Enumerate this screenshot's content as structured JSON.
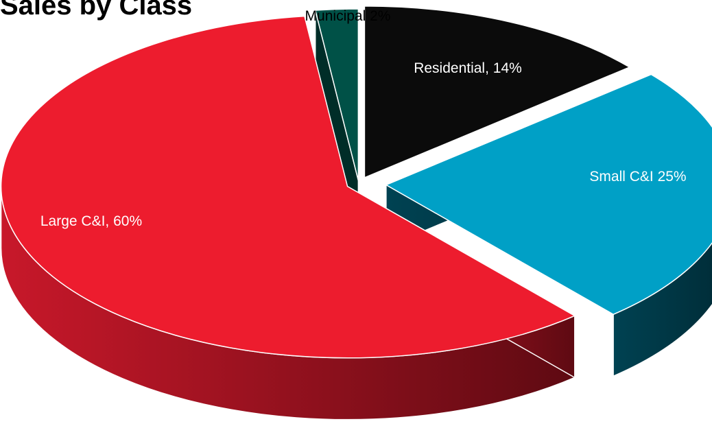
{
  "chart_data": {
    "type": "pie",
    "title": "Sales by Class",
    "slices": [
      {
        "label": "Residential, 14%",
        "name": "Residential",
        "value": 14,
        "color": "#0b0b0b",
        "text_color": "#ffffff"
      },
      {
        "label": "Small C&I 25%",
        "name": "Small C&I",
        "value": 25,
        "color": "#00a0c6",
        "text_color": "#ffffff"
      },
      {
        "label": "Large C&I, 60%",
        "name": "Large C&I",
        "value": 60,
        "color": "#ed1c2e",
        "text_color": "#ffffff"
      },
      {
        "label": "Municipal 2%",
        "name": "Municipal",
        "value": 2,
        "color": "#005147",
        "text_color": "#000000"
      }
    ],
    "style": "3d-exploded"
  }
}
